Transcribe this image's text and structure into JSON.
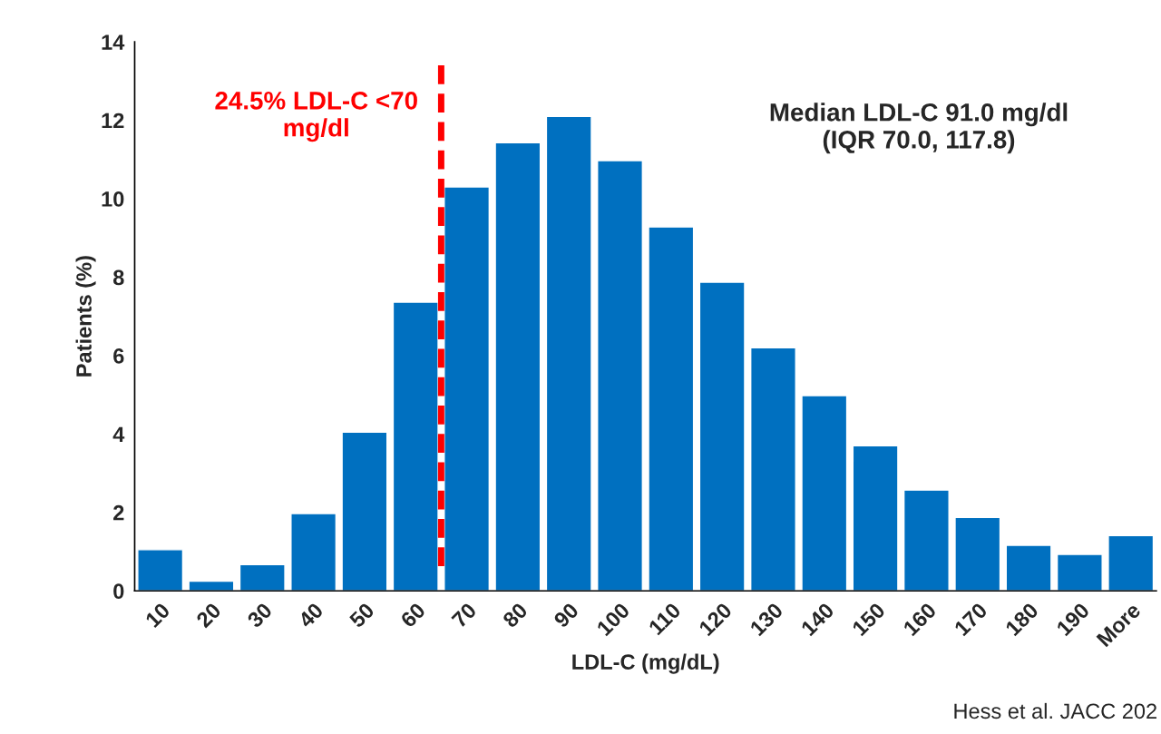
{
  "chart_data": {
    "type": "bar",
    "xlabel": "LDL-C (mg/dL)",
    "ylabel": "Patients (%)",
    "categories": [
      "10",
      "20",
      "30",
      "40",
      "50",
      "60",
      "70",
      "80",
      "90",
      "100",
      "110",
      "120",
      "130",
      "140",
      "150",
      "160",
      "170",
      "180",
      "190",
      "More"
    ],
    "values": [
      1.05,
      0.25,
      0.67,
      1.97,
      4.05,
      7.36,
      10.3,
      11.43,
      12.1,
      10.97,
      9.28,
      7.87,
      6.2,
      4.98,
      3.7,
      2.57,
      1.87,
      1.16,
      0.93,
      1.41
    ],
    "color": "#0070c0",
    "ylim": [
      0,
      14
    ],
    "yticks": [
      0,
      2,
      4,
      6,
      8,
      10,
      12,
      14
    ],
    "grid": false,
    "legend": false,
    "ref_lines": [
      {
        "axis": "x",
        "value": "70",
        "label": "24.5% LDL-C <70\nmg/dl",
        "color": "#ff0000",
        "line_style": "dashed"
      }
    ],
    "annotations": [
      "Median LDL-C 91.0 mg/dl\n(IQR 70.0, 117.8)",
      "Hess et al. JACC 202"
    ]
  }
}
